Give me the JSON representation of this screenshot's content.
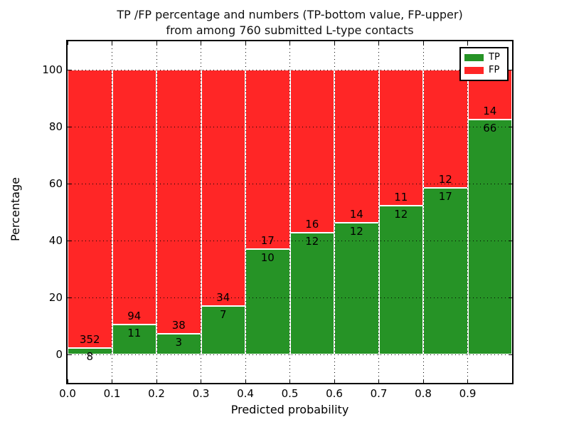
{
  "figure": {
    "title_line1": "TP /FP percentage and numbers (TP-bottom value, FP-upper)",
    "title_line2": "from among 760 submitted L-type contacts",
    "background": "#ffffff"
  },
  "axes": {
    "xlabel": "Predicted probability",
    "ylabel": "Percentage"
  },
  "legend": {
    "position": "upper right",
    "items": [
      {
        "label": "TP",
        "color": "#269326"
      },
      {
        "label": "FP",
        "color": "#ff2626"
      }
    ]
  },
  "chart_data": {
    "type": "bar",
    "subtype": "stacked_percentage_histogram",
    "title": "TP /FP percentage and numbers (TP-bottom value, FP-upper) from among 760 submitted L-type contacts",
    "xlabel": "Predicted probability",
    "ylabel": "Percentage",
    "total_contacts": 760,
    "bin_edges": [
      0.0,
      0.1,
      0.2,
      0.3,
      0.4,
      0.5,
      0.6,
      0.7,
      0.8,
      0.9,
      1.0
    ],
    "categories": [
      "0.0-0.1",
      "0.1-0.2",
      "0.2-0.3",
      "0.3-0.4",
      "0.4-0.5",
      "0.5-0.6",
      "0.6-0.7",
      "0.7-0.8",
      "0.8-0.9",
      "0.9-1.0"
    ],
    "series": [
      {
        "name": "TP",
        "color": "#269326",
        "counts": [
          8,
          11,
          3,
          7,
          10,
          12,
          12,
          12,
          17,
          66
        ]
      },
      {
        "name": "FP",
        "color": "#ff2626",
        "counts": [
          352,
          94,
          38,
          34,
          17,
          16,
          14,
          11,
          12,
          14
        ]
      }
    ],
    "tp_percent_of_bin": [
      2.22,
      10.48,
      7.32,
      17.07,
      37.04,
      42.86,
      46.15,
      52.17,
      58.62,
      82.5
    ],
    "bar_total_percent": 100,
    "ylim": [
      -10,
      110
    ],
    "xlim": [
      0.0,
      1.0
    ],
    "yticks": [
      0,
      20,
      40,
      60,
      80,
      100
    ],
    "xtick_labels": [
      "0.0",
      "0.1",
      "0.2",
      "0.3",
      "0.4",
      "0.5",
      "0.6",
      "0.7",
      "0.8",
      "0.9"
    ],
    "grid": "dotted",
    "legend_position": "upper right"
  }
}
